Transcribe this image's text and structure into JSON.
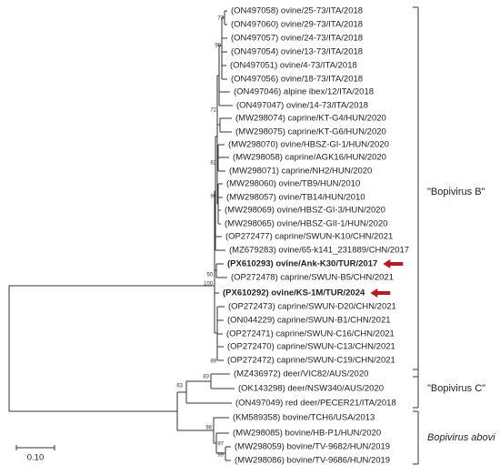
{
  "tree": {
    "leaves": [
      {
        "label": "(ON497058) ovine/25-73/ITA/2018"
      },
      {
        "label": "(ON497060) ovine/29-73/ITA/2018"
      },
      {
        "label": "(ON497057) ovine/24-73/ITA/2018"
      },
      {
        "label": "(ON497054) ovine/13-73/ITA/2018"
      },
      {
        "label": "(ON497051) ovine/4-73/ITA/2018"
      },
      {
        "label": "(ON497056) ovine/18-73/ITA/2018"
      },
      {
        "label": "(ON497046) alpine ibex/12/ITA/2018"
      },
      {
        "label": "(ON497047) ovine/14-73/ITA/2018"
      },
      {
        "label": "(MW298074) caprine/KT-G4/HUN/2020"
      },
      {
        "label": "(MW298075) caprine/KT-G6/HUN/2020"
      },
      {
        "label": "(MW298070) ovine/HBSZ-GI-1/HUN/2020"
      },
      {
        "label": "(MW298058) caprine/AGK16/HUN/2020"
      },
      {
        "label": "(MW298071) caprine/NH2/HUN/2020"
      },
      {
        "label": "(MW298060) ovine/TB9/HUN/2010"
      },
      {
        "label": "(MW298057) ovine/TB14/HUN/2010"
      },
      {
        "label": "(MW298069) ovine/HBSZ-GI-3/HUN/2020"
      },
      {
        "label": "(MW298065) ovine/HBSZ-GII-1/HUN/2020"
      },
      {
        "label": "(OP272477) caprine/SWUN-K10/CHN/2021"
      },
      {
        "label": "(MZ679283) ovine/65-k141_231889/CHN/2017"
      },
      {
        "label": "(PX610293) ovine/Ank-K30/TUR/2017",
        "bold": true
      },
      {
        "label": "(OP272478) caprine/SWUN-B5/CHN/2021"
      },
      {
        "label": "(PX610292) ovine/KS-1M/TUR/2024",
        "bold": true
      },
      {
        "label": "(OP272473) caprine/SWUN-D20/CHN/2021"
      },
      {
        "label": "(ON044229) caprine/SWUN-B1/CHN/2021"
      },
      {
        "label": "(OP272471) caprine/SWUN-C16/CHN/2021"
      },
      {
        "label": "(OP272470) caprine/SWUN-C13/CHN/2021"
      },
      {
        "label": "(OP272472) caprine/SWUN-C19/CHN/2021"
      },
      {
        "label": "(MZ436972) deer/VIC82/AUS/2020"
      },
      {
        "label": "(OK143298) deer/NSW340/AUS/2020"
      },
      {
        "label": "(ON497049) red deer/PECER21/ITA/2018"
      },
      {
        "label": "(KM589358) bovine/TCH6/USA/2013"
      },
      {
        "label": "(MW298085) bovine/HB-P1/HUN/2020"
      },
      {
        "label": "(MW298059) bovine/TV-9682/HUN/2019"
      },
      {
        "label": "(MW298086) bovine/TV-9686/HUN/2019"
      }
    ],
    "bootstrap": [
      73,
      96,
      72,
      82,
      99,
      50,
      100,
      89,
      83,
      63,
      98,
      97,
      99
    ],
    "clades": [
      {
        "label": "\"Bopivirus B\""
      },
      {
        "label": "\"Bopivirus C\""
      },
      {
        "label": "Bopivirus abovi",
        "italic": true
      }
    ],
    "scale_label": "0.10"
  }
}
